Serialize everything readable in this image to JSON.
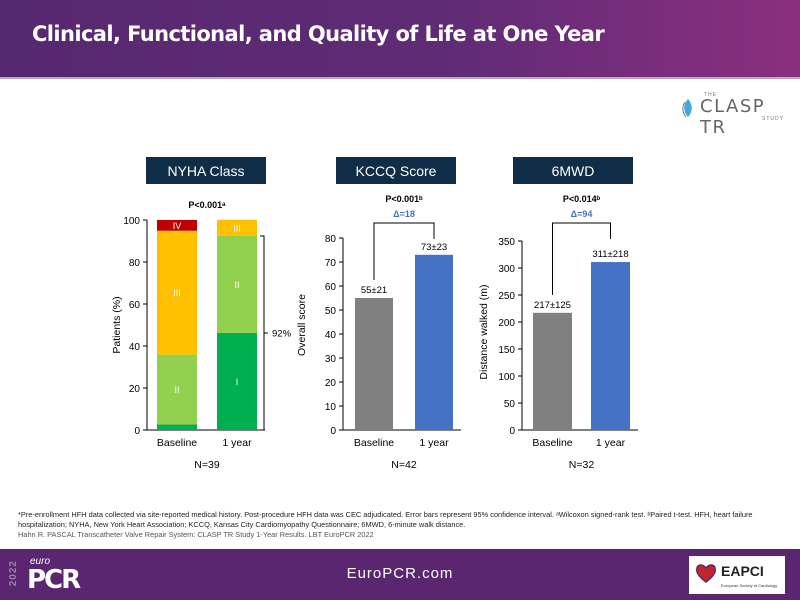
{
  "header": {
    "title": "Clinical, Functional, and Quality of Life at One Year"
  },
  "logos": {
    "clasp": {
      "the": "THE",
      "main": "CLASP TR",
      "study": "STUDY"
    },
    "europcr": {
      "year": "2022",
      "euro": "euro",
      "main": "PCR"
    },
    "eapci": {
      "name": "EAPCI",
      "sub": "European Society of Cardiology"
    }
  },
  "footer": {
    "url": "EuroPCR.com"
  },
  "colors": {
    "header_purple": "#56286f",
    "panel_title_bg": "#0f2d47",
    "nyha_I": "#00b050",
    "nyha_II": "#92d050",
    "nyha_III": "#ffc000",
    "nyha_IV": "#c00000",
    "baseline_bar": "#808080",
    "one_year_bar": "#4472c4",
    "delta_text": "#4472c4"
  },
  "footnotes": {
    "line1": "*Pre-enrollment HFH data collected via site-reported medical history. Post-procedure HFH data was CEC adjudicated. Error bars represent 95% confidence interval. ᵃWilcoxon signed-rank test. ᵇPaired t-test. HFH, heart failure hospitalization; NYHA, New York Heart Association; KCCQ, Kansas City Cardiomyopathy Questionnaire; 6MWD, 6-minute walk distance.",
    "citation": "Hahn R. PASCAL Transcatheter Valve Repair System: CLASP TR Study 1-Year Results. LBT EuroPCR 2022"
  },
  "chart_data": [
    {
      "type": "bar",
      "stacked": true,
      "title": "NYHA Class",
      "pvalue": "P<0.001ᵃ",
      "categories": [
        "Baseline",
        "1 year"
      ],
      "ylabel": "Patients (%)",
      "ylim": [
        0,
        100
      ],
      "yticks": [
        0,
        20,
        40,
        60,
        80,
        100
      ],
      "series": [
        {
          "name": "I",
          "values": [
            2.6,
            46.2
          ]
        },
        {
          "name": "II",
          "values": [
            33.3,
            46.2
          ]
        },
        {
          "name": "III",
          "values": [
            59.0,
            7.7
          ]
        },
        {
          "name": "IV",
          "values": [
            5.1,
            0
          ]
        }
      ],
      "annotation": "92%",
      "n_label": "N=39"
    },
    {
      "type": "bar",
      "title": "KCCQ Score",
      "pvalue": "P<0.001ᵇ",
      "delta": "Δ=18",
      "categories": [
        "Baseline",
        "1 year"
      ],
      "values": [
        55,
        73
      ],
      "data_labels": [
        "55±21",
        "73±23"
      ],
      "ylabel": "Overall score",
      "ylim": [
        0,
        80
      ],
      "yticks": [
        0,
        10,
        20,
        30,
        40,
        50,
        60,
        70,
        80
      ],
      "n_label": "N=42"
    },
    {
      "type": "bar",
      "title": "6MWD",
      "pvalue": "P<0.014ᵇ",
      "delta": "Δ=94",
      "categories": [
        "Baseline",
        "1 year"
      ],
      "values": [
        217,
        311
      ],
      "data_labels": [
        "217±125",
        "311±218"
      ],
      "ylabel": "Distance walked (m)",
      "ylim": [
        0,
        350
      ],
      "yticks": [
        0,
        50,
        100,
        150,
        200,
        250,
        300,
        350
      ],
      "n_label": "N=32"
    }
  ]
}
